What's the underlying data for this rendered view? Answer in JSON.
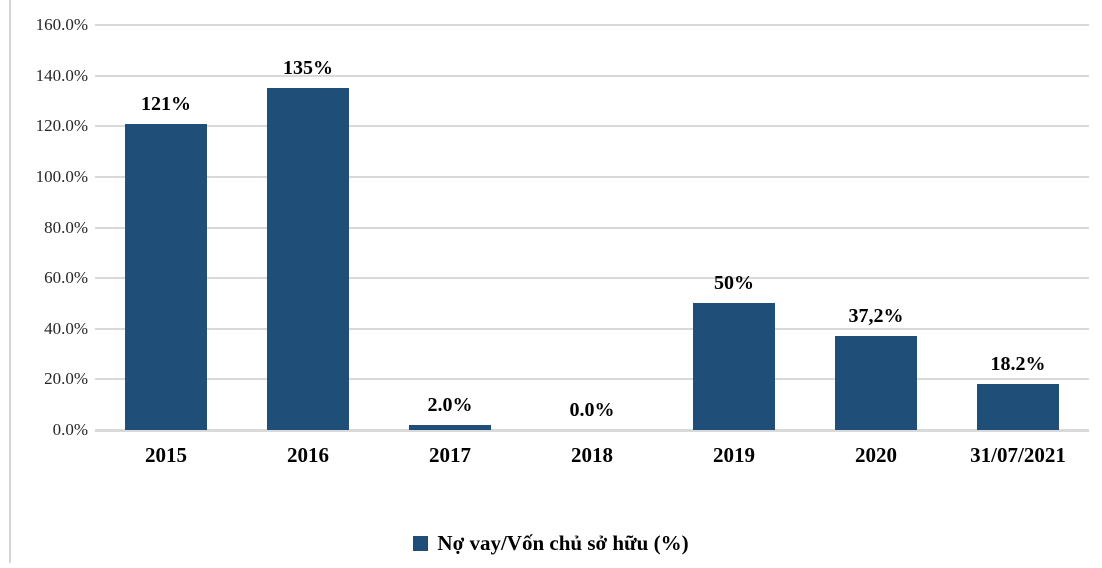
{
  "chart_data": {
    "type": "bar",
    "categories": [
      "2015",
      "2016",
      "2017",
      "2018",
      "2019",
      "2020",
      "31/07/2021"
    ],
    "values": [
      121,
      135,
      2.0,
      0.0,
      50,
      37.2,
      18.2
    ],
    "data_labels": [
      "121%",
      "135%",
      "2.0%",
      "0.0%",
      "50%",
      "37,2%",
      "18.2%"
    ],
    "series_name": "Nợ vay/Vốn chủ sở hữu (%)",
    "legend": "Nợ vay/Vốn chủ sở hữu (%)",
    "legend_position": "bottom",
    "title": "",
    "xlabel": "",
    "ylabel": "",
    "ylim": [
      0,
      160
    ],
    "ytick_step": 20,
    "ytick_labels": [
      "0.0%",
      "20.0%",
      "40.0%",
      "60.0%",
      "80.0%",
      "100.0%",
      "120.0%",
      "140.0%",
      "160.0%"
    ],
    "grid": true,
    "bar_color": "#1F4E79",
    "gridline_color": "#D9D9D9",
    "axis_text_color": "#262626",
    "label_text_color": "#000000"
  }
}
